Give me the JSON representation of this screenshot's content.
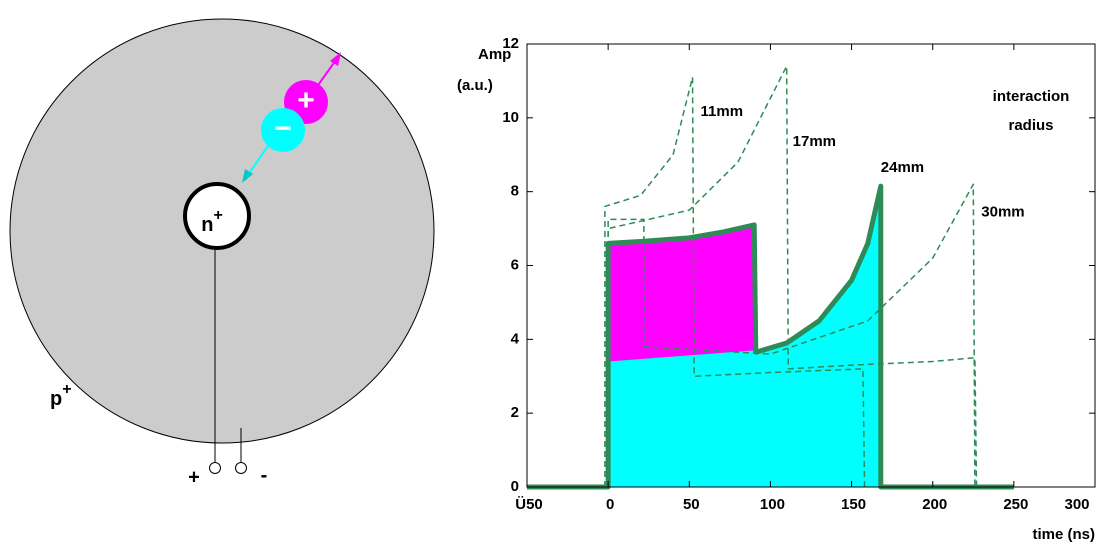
{
  "diagram": {
    "p_label": "p",
    "p_sup": "+",
    "n_label": "n",
    "n_sup": "+",
    "hole": "+",
    "electron": "−",
    "terminal_plus": "+",
    "terminal_minus": "-"
  },
  "chart_data": {
    "type": "line",
    "ylabel": [
      "Amp",
      "(a.u.)"
    ],
    "xlabel": "time (ns)",
    "note": [
      "interaction",
      "radius"
    ],
    "xlim": [
      -50,
      300
    ],
    "ylim": [
      0,
      12
    ],
    "xticks": [
      {
        "value": -50,
        "label": "Ü50"
      },
      0,
      50,
      100,
      150,
      200,
      250,
      300
    ],
    "yticks": [
      0,
      2,
      4,
      6,
      8,
      10,
      12
    ],
    "series": [
      {
        "style": "area",
        "color": "#ff00ff",
        "x": [
          0,
          0,
          20,
          50,
          70,
          90,
          90
        ],
        "values": [
          0,
          6.6,
          6.65,
          6.75,
          6.9,
          7.1,
          0
        ]
      },
      {
        "style": "area",
        "color": "#00ffff",
        "x": [
          0,
          0,
          30,
          60,
          90,
          110,
          130,
          150,
          160,
          168,
          168
        ],
        "values": [
          0,
          3.4,
          3.5,
          3.6,
          3.7,
          3.9,
          4.5,
          5.6,
          6.6,
          8.15,
          0
        ]
      },
      {
        "style": "dashed",
        "color": "#2e8b57",
        "label": "11mm",
        "x": [
          -2,
          -2,
          20,
          40,
          52,
          53,
          100,
          157,
          158
        ],
        "values": [
          0,
          7.6,
          7.9,
          9,
          11.1,
          3.0,
          3.1,
          3.2,
          0
        ]
      },
      {
        "style": "dashed",
        "color": "#2e8b57",
        "label": "17mm",
        "x": [
          0,
          0,
          50,
          80,
          110,
          111,
          150,
          200,
          226,
          227
        ],
        "values": [
          0,
          7.0,
          7.5,
          8.8,
          11.4,
          3.2,
          3.3,
          3.4,
          3.5,
          0
        ]
      },
      {
        "style": "solid",
        "color": "#2e8b57",
        "label": "24mm",
        "x": [
          -50,
          0,
          0,
          20,
          50,
          70,
          90,
          91,
          110,
          130,
          150,
          160,
          168,
          168,
          250
        ],
        "values": [
          0,
          0,
          6.6,
          6.65,
          6.75,
          6.9,
          7.1,
          3.65,
          3.9,
          4.5,
          5.6,
          6.6,
          8.15,
          0,
          0
        ]
      },
      {
        "style": "dashed",
        "color": "#2e8b57",
        "label": "30mm",
        "x": [
          0,
          0,
          22,
          22,
          100,
          160,
          200,
          225,
          226
        ],
        "values": [
          0,
          7.25,
          7.25,
          3.8,
          3.6,
          4.5,
          6.2,
          8.2,
          0
        ]
      }
    ]
  }
}
